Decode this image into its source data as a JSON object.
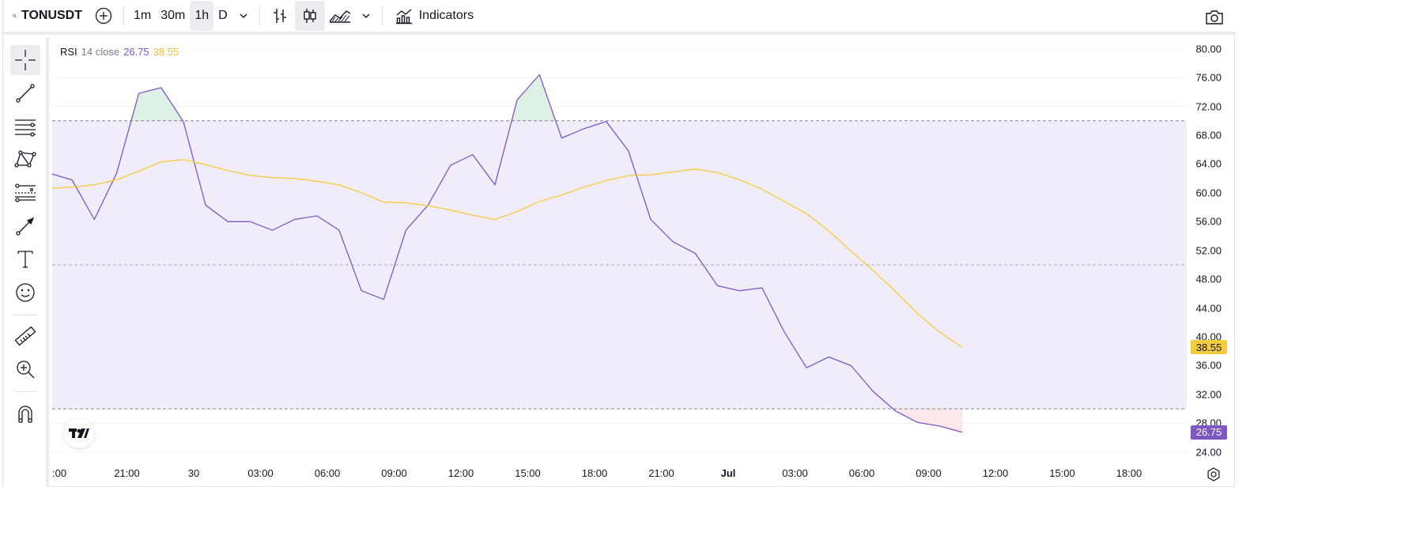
{
  "toolbar": {
    "symbol": "TONUSDT",
    "intervals": [
      "1m",
      "30m",
      "1h",
      "D"
    ],
    "active_interval": "1h",
    "indicators_label": "Indicators"
  },
  "legend": {
    "name": "RSI",
    "params": "14 close",
    "rsi_value": "26.75",
    "ma_value": "38.55"
  },
  "colors": {
    "rsi": "#7e57c2",
    "ma": "#f5cc3d",
    "band_fill": "#f0ecfa",
    "overbought_fill": "#d7efe0",
    "oversold_fill": "#fbe3e6"
  },
  "price_axis": {
    "labels": [
      "80.00",
      "76.00",
      "72.00",
      "68.00",
      "64.00",
      "60.00",
      "56.00",
      "52.00",
      "48.00",
      "44.00",
      "40.00",
      "36.00",
      "32.00",
      "28.00",
      "24.00"
    ],
    "tags": [
      {
        "text": "38.55",
        "value": 38.55,
        "color": "#f5cc3d",
        "textColor": "#131722"
      },
      {
        "text": "26.75",
        "value": 26.75,
        "color": "#7e57c2",
        "textColor": "#ffffff"
      }
    ]
  },
  "time_axis": {
    "labels": [
      {
        "text": ":00",
        "bold": false
      },
      {
        "text": "21:00",
        "bold": false
      },
      {
        "text": "30",
        "bold": false
      },
      {
        "text": "03:00",
        "bold": false
      },
      {
        "text": "06:00",
        "bold": false
      },
      {
        "text": "09:00",
        "bold": false
      },
      {
        "text": "12:00",
        "bold": false
      },
      {
        "text": "15:00",
        "bold": false
      },
      {
        "text": "18:00",
        "bold": false
      },
      {
        "text": "21:00",
        "bold": false
      },
      {
        "text": "Jul",
        "bold": true
      },
      {
        "text": "03:00",
        "bold": false
      },
      {
        "text": "06:00",
        "bold": false
      },
      {
        "text": "09:00",
        "bold": false
      },
      {
        "text": "12:00",
        "bold": false
      },
      {
        "text": "15:00",
        "bold": false
      },
      {
        "text": "18:00",
        "bold": false
      }
    ]
  },
  "chart_data": {
    "type": "line",
    "ylim": [
      22,
      81.5
    ],
    "bands": {
      "upper": 70,
      "middle": 50,
      "lower": 30
    },
    "series": [
      {
        "values": [
          62.7,
          61.8,
          56.3,
          62.7,
          73.8,
          74.6,
          69.9,
          58.3,
          56.0,
          56.0,
          54.8,
          56.3,
          56.8,
          54.8,
          46.4,
          45.2,
          54.8,
          58.3,
          63.8,
          65.3,
          61.1,
          72.9,
          76.4,
          67.6,
          68.9,
          69.9,
          65.8,
          56.3,
          53.2,
          51.6,
          47.1,
          46.4,
          46.8,
          40.7,
          35.7,
          37.2,
          36.0,
          32.4,
          29.7,
          28.1,
          27.6,
          26.75
        ]
      },
      {
        "values": [
          60.6,
          60.8,
          61.1,
          61.8,
          63.0,
          64.3,
          64.6,
          63.9,
          63.1,
          62.4,
          62.1,
          62.0,
          61.6,
          61.1,
          60.0,
          58.7,
          58.6,
          58.2,
          57.6,
          56.9,
          56.3,
          57.4,
          58.8,
          59.7,
          60.8,
          61.7,
          62.4,
          62.5,
          62.9,
          63.3,
          62.8,
          61.8,
          60.5,
          58.8,
          57.1,
          54.7,
          51.9,
          49.2,
          46.3,
          43.2,
          40.6,
          38.55
        ]
      }
    ]
  }
}
